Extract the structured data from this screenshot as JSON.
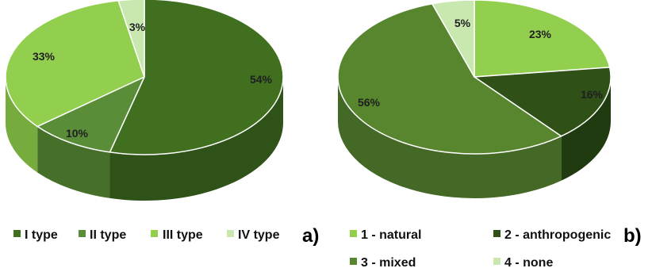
{
  "chart_data": [
    {
      "type": "pie",
      "panel_label": "a)",
      "categories": [
        "I type",
        "II type",
        "III type",
        "IV type"
      ],
      "values": [
        54,
        10,
        33,
        3
      ],
      "value_labels": [
        "54%",
        "10%",
        "33%",
        "3%"
      ],
      "colors": [
        "#3f6f1f",
        "#5a8d37",
        "#93cf4f",
        "#c9e8b0"
      ],
      "side_colors": [
        "#2f5218",
        "#46702a",
        "#76ab3d",
        "#9fbd88"
      ],
      "start_angle_deg": -90,
      "legend_position": "bottom",
      "legend_labels": [
        "I type",
        "II type",
        "III type",
        "IV type"
      ],
      "style": "3d-tilted"
    },
    {
      "type": "pie",
      "panel_label": "b)",
      "categories": [
        "1 - natural",
        "2 - anthropogenic",
        "3 - mixed",
        "4 - none"
      ],
      "values": [
        23,
        16,
        56,
        5
      ],
      "value_labels": [
        "23%",
        "16%",
        "56%",
        "5%"
      ],
      "colors": [
        "#93cf4f",
        "#2f5118",
        "#58862f",
        "#c9e8b0"
      ],
      "side_colors": [
        "#76ab3d",
        "#1f3b0f",
        "#446825",
        "#9fbd88"
      ],
      "start_angle_deg": -90,
      "legend_position": "bottom",
      "legend_labels": [
        "1 - natural",
        "2 - anthropogenic",
        "3 - mixed",
        "4 - none"
      ],
      "style": "3d-tilted"
    }
  ]
}
